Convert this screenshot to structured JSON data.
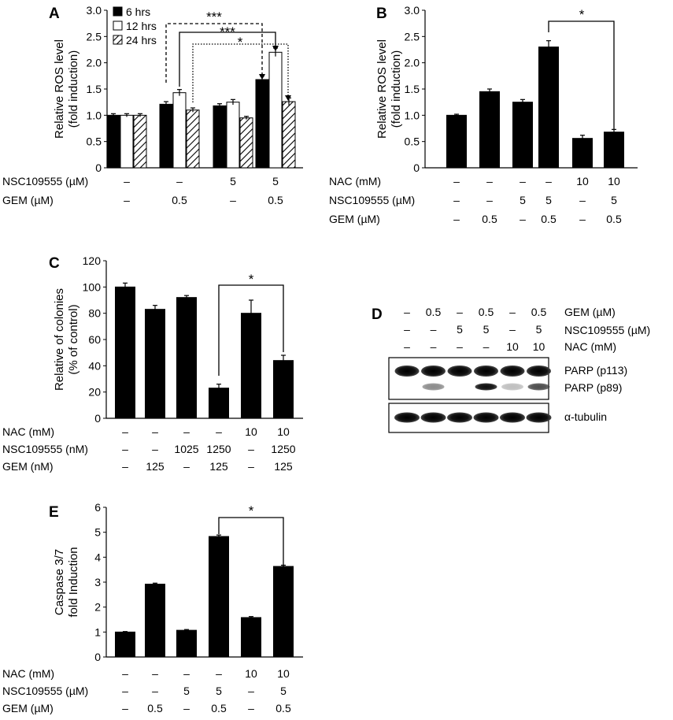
{
  "panel_letters": {
    "A": "A",
    "B": "B",
    "C": "C",
    "D": "D",
    "E": "E"
  },
  "blot": {
    "rows": [
      {
        "label": "GEM (µM)",
        "values": [
          "–",
          "0.5",
          "–",
          "0.5",
          "–",
          "0.5"
        ]
      },
      {
        "label": "NSC109555 (µM)",
        "values": [
          "–",
          "–",
          "5",
          "5",
          "–",
          "5"
        ]
      },
      {
        "label": "NAC (mM)",
        "values": [
          "–",
          "–",
          "–",
          "–",
          "10",
          "10"
        ]
      }
    ],
    "band_labels": [
      "PARP (p113)",
      "PARP (p89)",
      "α-tubulin"
    ],
    "p113_intensity": [
      1,
      1,
      1,
      1,
      1,
      1
    ],
    "p89_intensity": [
      0,
      0.45,
      0,
      0.95,
      0.25,
      0.7
    ],
    "tubulin_intensity": [
      1,
      1,
      1,
      1,
      1,
      1
    ]
  },
  "chart_data": [
    {
      "id": "A",
      "type": "bar",
      "ylabel": [
        "Relative ROS level",
        "(fold induction)"
      ],
      "ylim": [
        0,
        3
      ],
      "yticks": [
        "0",
        "0.5",
        "1.0",
        "1.5",
        "2.0",
        "2.5",
        "3.0"
      ],
      "legend": [
        "6 hrs",
        "12 hrs",
        "24 hrs"
      ],
      "series_fills": [
        "#000000",
        "#ffffff",
        "hatch"
      ],
      "groups": [
        {
          "values": [
            1.0,
            1.0,
            1.0
          ],
          "errors": [
            0.03,
            0.03,
            0.03
          ]
        },
        {
          "values": [
            1.21,
            1.43,
            1.1
          ],
          "errors": [
            0.05,
            0.06,
            0.04
          ]
        },
        {
          "values": [
            1.18,
            1.25,
            0.95
          ],
          "errors": [
            0.04,
            0.05,
            0.03
          ]
        },
        {
          "values": [
            1.68,
            2.2,
            1.26
          ],
          "errors": [
            0.07,
            0.08,
            0.07
          ]
        }
      ],
      "conditions": [
        {
          "label": "NSC109555 (µM)",
          "values": [
            "–",
            "–",
            "5",
            "5"
          ]
        },
        {
          "label": "GEM (µM)",
          "values": [
            "–",
            "0.5",
            "–",
            "0.5"
          ]
        }
      ],
      "significance": [
        "***",
        "***",
        "*"
      ]
    },
    {
      "id": "B",
      "type": "bar",
      "ylabel": [
        "Relative ROS level",
        "(fold induction)"
      ],
      "ylim": [
        0,
        3
      ],
      "yticks": [
        "0",
        "0.5",
        "1.0",
        "1.5",
        "2.0",
        "2.5",
        "3.0"
      ],
      "values": [
        1.0,
        1.45,
        1.25,
        2.3,
        0.56,
        0.68
      ],
      "errors": [
        0.02,
        0.05,
        0.05,
        0.12,
        0.06,
        0.05
      ],
      "conditions": [
        {
          "label": "NAC (mM)",
          "values": [
            "–",
            "–",
            "–",
            "–",
            "10",
            "10"
          ]
        },
        {
          "label": "NSC109555 (µM)",
          "values": [
            "–",
            "–",
            "5",
            "5",
            "–",
            "5"
          ]
        },
        {
          "label": "GEM (µM)",
          "values": [
            "–",
            "0.5",
            "–",
            "0.5",
            "–",
            "0.5"
          ]
        }
      ],
      "significance": [
        "*"
      ]
    },
    {
      "id": "C",
      "type": "bar",
      "ylabel": [
        "Relative of colonies",
        "(% of control)"
      ],
      "ylim": [
        0,
        120
      ],
      "yticks": [
        "0",
        "20",
        "40",
        "60",
        "80",
        "100",
        "120"
      ],
      "values": [
        100,
        83,
        92,
        23,
        80,
        44
      ],
      "errors": [
        3,
        3,
        1.5,
        3,
        10,
        4
      ],
      "conditions": [
        {
          "label": "NAC (mM)",
          "values": [
            "–",
            "–",
            "–",
            "–",
            "10",
            "10"
          ]
        },
        {
          "label": "NSC109555 (nM)",
          "values": [
            "–",
            "–",
            "1025",
            "1250",
            "–",
            "1250"
          ]
        },
        {
          "label": "GEM (nM)",
          "values": [
            "–",
            "125",
            "–",
            "125",
            "–",
            "125"
          ]
        }
      ],
      "significance": [
        "*"
      ]
    },
    {
      "id": "E",
      "type": "bar",
      "ylabel": [
        "Caspase 3/7",
        "fold Induction"
      ],
      "ylim": [
        0,
        6
      ],
      "yticks": [
        "0",
        "1",
        "2",
        "3",
        "4",
        "5",
        "6"
      ],
      "values": [
        1.0,
        2.92,
        1.07,
        4.83,
        1.58,
        3.63
      ],
      "errors": [
        0.02,
        0.04,
        0.03,
        0.06,
        0.04,
        0.05
      ],
      "conditions": [
        {
          "label": "NAC (mM)",
          "values": [
            "–",
            "–",
            "–",
            "–",
            "10",
            "10"
          ]
        },
        {
          "label": "NSC109555 (µM)",
          "values": [
            "–",
            "–",
            "5",
            "5",
            "–",
            "5"
          ]
        },
        {
          "label": "GEM (µM)",
          "values": [
            "–",
            "0.5",
            "–",
            "0.5",
            "–",
            "0.5"
          ]
        }
      ],
      "significance": [
        "*"
      ]
    }
  ]
}
